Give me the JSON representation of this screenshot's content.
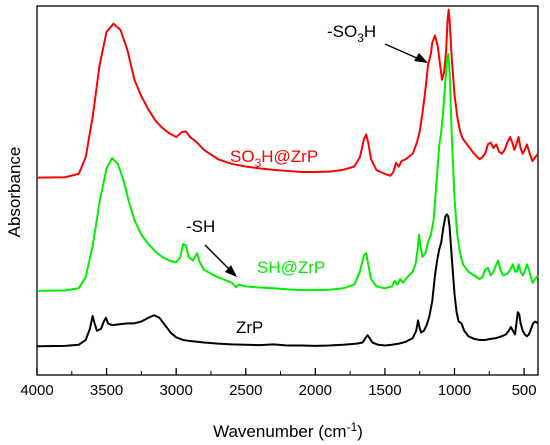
{
  "chart_data": {
    "type": "line",
    "xlabel": "Wavenumber (cm",
    "xlabel_sup": "-1",
    "xlabel_close": ")",
    "ylabel": "Absorbance",
    "xlim": [
      4000,
      400
    ],
    "x_reversed": true,
    "ylim": [
      0,
      1
    ],
    "y_ticks_shown": false,
    "grid": false,
    "x_ticks": [
      4000,
      3500,
      3000,
      2500,
      2000,
      1500,
      1000,
      500
    ],
    "x_tick_labels": [
      "4000",
      "3500",
      "3000",
      "2500",
      "2000",
      "1500",
      "1000",
      "500"
    ],
    "series": [
      {
        "color": "#ff0000",
        "label_main": "SO",
        "label_sub": "3",
        "label_rest": "H@ZrP",
        "points": [
          [
            4000,
            0.535
          ],
          [
            3800,
            0.536
          ],
          [
            3700,
            0.545
          ],
          [
            3650,
            0.59
          ],
          [
            3600,
            0.7
          ],
          [
            3550,
            0.84
          ],
          [
            3500,
            0.93
          ],
          [
            3450,
            0.952
          ],
          [
            3400,
            0.935
          ],
          [
            3350,
            0.88
          ],
          [
            3300,
            0.8
          ],
          [
            3250,
            0.755
          ],
          [
            3200,
            0.72
          ],
          [
            3150,
            0.69
          ],
          [
            3100,
            0.67
          ],
          [
            3050,
            0.655
          ],
          [
            3000,
            0.645
          ],
          [
            2960,
            0.658
          ],
          [
            2930,
            0.66
          ],
          [
            2900,
            0.645
          ],
          [
            2850,
            0.63
          ],
          [
            2800,
            0.61
          ],
          [
            2700,
            0.585
          ],
          [
            2600,
            0.572
          ],
          [
            2500,
            0.565
          ],
          [
            2400,
            0.56
          ],
          [
            2300,
            0.556
          ],
          [
            2200,
            0.553
          ],
          [
            2100,
            0.55
          ],
          [
            2000,
            0.55
          ],
          [
            1900,
            0.551
          ],
          [
            1800,
            0.556
          ],
          [
            1720,
            0.565
          ],
          [
            1680,
            0.59
          ],
          [
            1650,
            0.64
          ],
          [
            1635,
            0.652
          ],
          [
            1620,
            0.63
          ],
          [
            1600,
            0.585
          ],
          [
            1560,
            0.555
          ],
          [
            1500,
            0.545
          ],
          [
            1460,
            0.54
          ],
          [
            1440,
            0.55
          ],
          [
            1420,
            0.575
          ],
          [
            1400,
            0.565
          ],
          [
            1380,
            0.58
          ],
          [
            1350,
            0.585
          ],
          [
            1300,
            0.6
          ],
          [
            1270,
            0.63
          ],
          [
            1250,
            0.66
          ],
          [
            1230,
            0.71
          ],
          [
            1210,
            0.77
          ],
          [
            1190,
            0.84
          ],
          [
            1170,
            0.87
          ],
          [
            1160,
            0.9
          ],
          [
            1140,
            0.92
          ],
          [
            1120,
            0.89
          ],
          [
            1100,
            0.83
          ],
          [
            1090,
            0.8
          ],
          [
            1075,
            0.82
          ],
          [
            1060,
            0.88
          ],
          [
            1050,
            0.96
          ],
          [
            1042,
            0.99
          ],
          [
            1035,
            0.96
          ],
          [
            1020,
            0.86
          ],
          [
            1000,
            0.76
          ],
          [
            980,
            0.7
          ],
          [
            960,
            0.66
          ],
          [
            940,
            0.64
          ],
          [
            900,
            0.62
          ],
          [
            860,
            0.6
          ],
          [
            820,
            0.585
          ],
          [
            800,
            0.59
          ],
          [
            780,
            0.6
          ],
          [
            760,
            0.625
          ],
          [
            740,
            0.63
          ],
          [
            720,
            0.615
          ],
          [
            700,
            0.625
          ],
          [
            680,
            0.605
          ],
          [
            660,
            0.6
          ],
          [
            640,
            0.61
          ],
          [
            620,
            0.63
          ],
          [
            600,
            0.645
          ],
          [
            585,
            0.63
          ],
          [
            570,
            0.61
          ],
          [
            555,
            0.625
          ],
          [
            540,
            0.645
          ],
          [
            525,
            0.615
          ],
          [
            510,
            0.6
          ],
          [
            495,
            0.61
          ],
          [
            480,
            0.625
          ],
          [
            460,
            0.6
          ],
          [
            440,
            0.58
          ],
          [
            420,
            0.59
          ],
          [
            400,
            0.6
          ]
        ]
      },
      {
        "color": "#00ee00",
        "label_main": "SH@ZrP",
        "label_sub": "",
        "label_rest": "",
        "points": [
          [
            4000,
            0.228
          ],
          [
            3800,
            0.229
          ],
          [
            3700,
            0.235
          ],
          [
            3650,
            0.265
          ],
          [
            3600,
            0.35
          ],
          [
            3550,
            0.47
          ],
          [
            3500,
            0.56
          ],
          [
            3460,
            0.588
          ],
          [
            3420,
            0.572
          ],
          [
            3380,
            0.53
          ],
          [
            3340,
            0.47
          ],
          [
            3300,
            0.42
          ],
          [
            3250,
            0.38
          ],
          [
            3200,
            0.355
          ],
          [
            3150,
            0.335
          ],
          [
            3100,
            0.32
          ],
          [
            3050,
            0.31
          ],
          [
            3000,
            0.305
          ],
          [
            2970,
            0.32
          ],
          [
            2950,
            0.355
          ],
          [
            2930,
            0.35
          ],
          [
            2910,
            0.32
          ],
          [
            2880,
            0.31
          ],
          [
            2850,
            0.33
          ],
          [
            2830,
            0.305
          ],
          [
            2800,
            0.285
          ],
          [
            2700,
            0.265
          ],
          [
            2600,
            0.25
          ],
          [
            2570,
            0.238
          ],
          [
            2550,
            0.245
          ],
          [
            2500,
            0.24
          ],
          [
            2400,
            0.237
          ],
          [
            2300,
            0.235
          ],
          [
            2200,
            0.232
          ],
          [
            2100,
            0.23
          ],
          [
            2000,
            0.23
          ],
          [
            1900,
            0.231
          ],
          [
            1800,
            0.235
          ],
          [
            1720,
            0.245
          ],
          [
            1680,
            0.28
          ],
          [
            1650,
            0.325
          ],
          [
            1635,
            0.33
          ],
          [
            1620,
            0.3
          ],
          [
            1600,
            0.26
          ],
          [
            1560,
            0.24
          ],
          [
            1500,
            0.235
          ],
          [
            1450,
            0.24
          ],
          [
            1430,
            0.255
          ],
          [
            1410,
            0.245
          ],
          [
            1390,
            0.26
          ],
          [
            1370,
            0.25
          ],
          [
            1340,
            0.265
          ],
          [
            1300,
            0.28
          ],
          [
            1280,
            0.3
          ],
          [
            1265,
            0.34
          ],
          [
            1255,
            0.38
          ],
          [
            1245,
            0.35
          ],
          [
            1230,
            0.32
          ],
          [
            1210,
            0.33
          ],
          [
            1190,
            0.36
          ],
          [
            1170,
            0.38
          ],
          [
            1150,
            0.42
          ],
          [
            1130,
            0.52
          ],
          [
            1110,
            0.62
          ],
          [
            1095,
            0.66
          ],
          [
            1080,
            0.72
          ],
          [
            1065,
            0.8
          ],
          [
            1055,
            0.85
          ],
          [
            1045,
            0.87
          ],
          [
            1035,
            0.82
          ],
          [
            1020,
            0.65
          ],
          [
            1000,
            0.48
          ],
          [
            980,
            0.38
          ],
          [
            960,
            0.33
          ],
          [
            940,
            0.3
          ],
          [
            900,
            0.28
          ],
          [
            860,
            0.27
          ],
          [
            820,
            0.26
          ],
          [
            800,
            0.265
          ],
          [
            780,
            0.285
          ],
          [
            760,
            0.29
          ],
          [
            740,
            0.27
          ],
          [
            720,
            0.28
          ],
          [
            700,
            0.3
          ],
          [
            685,
            0.31
          ],
          [
            670,
            0.285
          ],
          [
            650,
            0.27
          ],
          [
            620,
            0.275
          ],
          [
            600,
            0.285
          ],
          [
            580,
            0.3
          ],
          [
            565,
            0.28
          ],
          [
            550,
            0.28
          ],
          [
            540,
            0.3
          ],
          [
            525,
            0.28
          ],
          [
            510,
            0.27
          ],
          [
            495,
            0.28
          ],
          [
            480,
            0.3
          ],
          [
            465,
            0.285
          ],
          [
            440,
            0.25
          ],
          [
            420,
            0.26
          ],
          [
            400,
            0.27
          ]
        ]
      },
      {
        "color": "#000000",
        "label_main": "ZrP",
        "label_sub": "",
        "label_rest": "",
        "points": [
          [
            4000,
            0.078
          ],
          [
            3800,
            0.079
          ],
          [
            3700,
            0.082
          ],
          [
            3650,
            0.095
          ],
          [
            3620,
            0.125
          ],
          [
            3600,
            0.16
          ],
          [
            3590,
            0.145
          ],
          [
            3570,
            0.12
          ],
          [
            3540,
            0.125
          ],
          [
            3520,
            0.145
          ],
          [
            3505,
            0.155
          ],
          [
            3490,
            0.14
          ],
          [
            3460,
            0.135
          ],
          [
            3400,
            0.138
          ],
          [
            3350,
            0.14
          ],
          [
            3300,
            0.14
          ],
          [
            3250,
            0.145
          ],
          [
            3200,
            0.155
          ],
          [
            3160,
            0.162
          ],
          [
            3120,
            0.155
          ],
          [
            3080,
            0.135
          ],
          [
            3040,
            0.115
          ],
          [
            3000,
            0.102
          ],
          [
            2950,
            0.095
          ],
          [
            2900,
            0.092
          ],
          [
            2800,
            0.088
          ],
          [
            2700,
            0.085
          ],
          [
            2600,
            0.083
          ],
          [
            2500,
            0.082
          ],
          [
            2400,
            0.081
          ],
          [
            2300,
            0.083
          ],
          [
            2200,
            0.08
          ],
          [
            2100,
            0.08
          ],
          [
            2000,
            0.079
          ],
          [
            1900,
            0.08
          ],
          [
            1800,
            0.082
          ],
          [
            1700,
            0.085
          ],
          [
            1660,
            0.088
          ],
          [
            1640,
            0.1
          ],
          [
            1625,
            0.108
          ],
          [
            1610,
            0.1
          ],
          [
            1590,
            0.088
          ],
          [
            1550,
            0.082
          ],
          [
            1500,
            0.08
          ],
          [
            1450,
            0.082
          ],
          [
            1400,
            0.085
          ],
          [
            1350,
            0.09
          ],
          [
            1300,
            0.1
          ],
          [
            1275,
            0.12
          ],
          [
            1262,
            0.148
          ],
          [
            1252,
            0.13
          ],
          [
            1240,
            0.115
          ],
          [
            1220,
            0.12
          ],
          [
            1200,
            0.135
          ],
          [
            1180,
            0.16
          ],
          [
            1160,
            0.2
          ],
          [
            1140,
            0.27
          ],
          [
            1125,
            0.31
          ],
          [
            1110,
            0.34
          ],
          [
            1095,
            0.36
          ],
          [
            1080,
            0.4
          ],
          [
            1065,
            0.43
          ],
          [
            1055,
            0.435
          ],
          [
            1045,
            0.43
          ],
          [
            1035,
            0.4
          ],
          [
            1020,
            0.32
          ],
          [
            1000,
            0.22
          ],
          [
            985,
            0.17
          ],
          [
            970,
            0.145
          ],
          [
            950,
            0.14
          ],
          [
            930,
            0.12
          ],
          [
            900,
            0.105
          ],
          [
            860,
            0.098
          ],
          [
            820,
            0.095
          ],
          [
            780,
            0.095
          ],
          [
            740,
            0.098
          ],
          [
            700,
            0.1
          ],
          [
            660,
            0.105
          ],
          [
            630,
            0.11
          ],
          [
            610,
            0.12
          ],
          [
            595,
            0.13
          ],
          [
            580,
            0.12
          ],
          [
            565,
            0.11
          ],
          [
            555,
            0.14
          ],
          [
            545,
            0.17
          ],
          [
            535,
            0.165
          ],
          [
            525,
            0.14
          ],
          [
            510,
            0.12
          ],
          [
            495,
            0.11
          ],
          [
            480,
            0.105
          ],
          [
            465,
            0.11
          ],
          [
            450,
            0.125
          ],
          [
            435,
            0.14
          ],
          [
            420,
            0.145
          ],
          [
            400,
            0.14
          ]
        ]
      }
    ],
    "annotations": {
      "so3h_main": "-SO",
      "so3h_sub": "3",
      "so3h_rest": "H",
      "sh": "-SH"
    }
  }
}
